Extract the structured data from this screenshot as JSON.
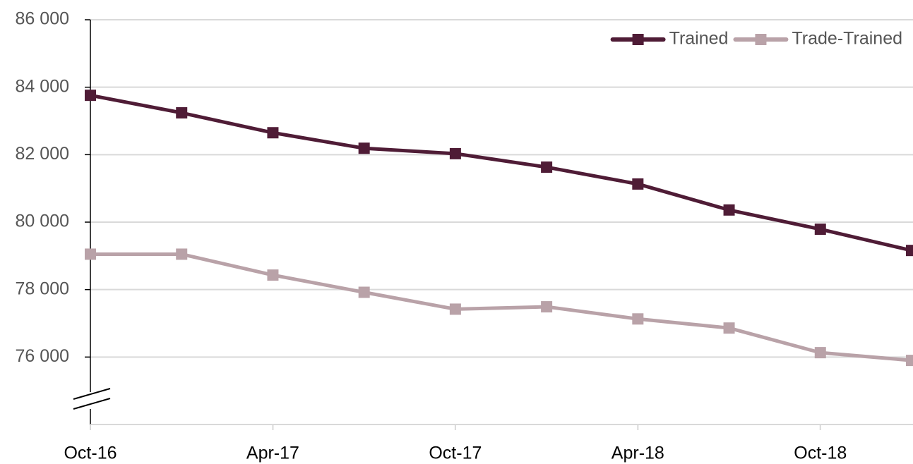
{
  "chart_data": {
    "type": "line",
    "categories": [
      "Oct-16",
      null,
      "Apr-17",
      null,
      "Oct-17",
      null,
      "Apr-18",
      null,
      "Oct-18",
      null
    ],
    "series": [
      {
        "name": "Trained",
        "color": "#4f1c36",
        "values": [
          83760,
          83240,
          82650,
          82190,
          82030,
          81630,
          81130,
          80360,
          79790,
          79160
        ]
      },
      {
        "name": "Trade-Trained",
        "color": "#b9a2a8",
        "values": [
          79050,
          79050,
          78430,
          77920,
          77420,
          77490,
          77130,
          76860,
          76130,
          75900
        ]
      }
    ],
    "ylim": [
      74000,
      86000
    ],
    "yticks": [
      {
        "value": 76000,
        "label": "76 000"
      },
      {
        "value": 78000,
        "label": "78 000"
      },
      {
        "value": 80000,
        "label": "80 000"
      },
      {
        "value": 82000,
        "label": "82 000"
      },
      {
        "value": 84000,
        "label": "84 000"
      },
      {
        "value": 86000,
        "label": "86 000"
      }
    ],
    "grid": true,
    "legend": "top-right"
  }
}
